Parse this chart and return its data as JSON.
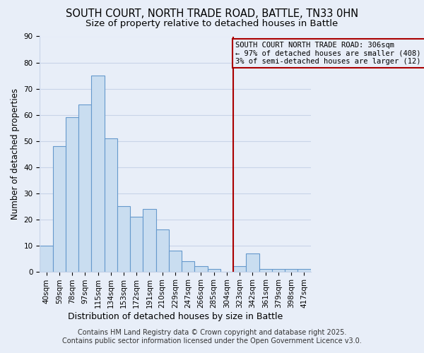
{
  "title": "SOUTH COURT, NORTH TRADE ROAD, BATTLE, TN33 0HN",
  "subtitle": "Size of property relative to detached houses in Battle",
  "xlabel": "Distribution of detached houses by size in Battle",
  "ylabel": "Number of detached properties",
  "categories": [
    "40sqm",
    "59sqm",
    "78sqm",
    "97sqm",
    "115sqm",
    "134sqm",
    "153sqm",
    "172sqm",
    "191sqm",
    "210sqm",
    "229sqm",
    "247sqm",
    "266sqm",
    "285sqm",
    "304sqm",
    "323sqm",
    "342sqm",
    "361sqm",
    "379sqm",
    "398sqm",
    "417sqm"
  ],
  "values": [
    10,
    48,
    59,
    64,
    75,
    51,
    25,
    21,
    24,
    16,
    8,
    4,
    2,
    1,
    0,
    2,
    7,
    1,
    1,
    1,
    1
  ],
  "bar_color": "#c9ddf0",
  "bar_edge_color": "#6699cc",
  "background_color": "#e8eef8",
  "grid_color": "#c8d4e8",
  "vline_x_index": 14,
  "vline_color": "#aa0000",
  "annotation_box_text": "SOUTH COURT NORTH TRADE ROAD: 306sqm\n← 97% of detached houses are smaller (408)\n3% of semi-detached houses are larger (12) →",
  "annotation_box_color": "#aa0000",
  "annotation_text_color": "#000000",
  "ylim": [
    0,
    90
  ],
  "yticks": [
    0,
    10,
    20,
    30,
    40,
    50,
    60,
    70,
    80,
    90
  ],
  "footnote1": "Contains HM Land Registry data © Crown copyright and database right 2025.",
  "footnote2": "Contains public sector information licensed under the Open Government Licence v3.0.",
  "title_fontsize": 10.5,
  "subtitle_fontsize": 9.5,
  "xlabel_fontsize": 9,
  "ylabel_fontsize": 8.5,
  "tick_fontsize": 7.5,
  "annotation_fontsize": 7.5,
  "footnote_fontsize": 7
}
